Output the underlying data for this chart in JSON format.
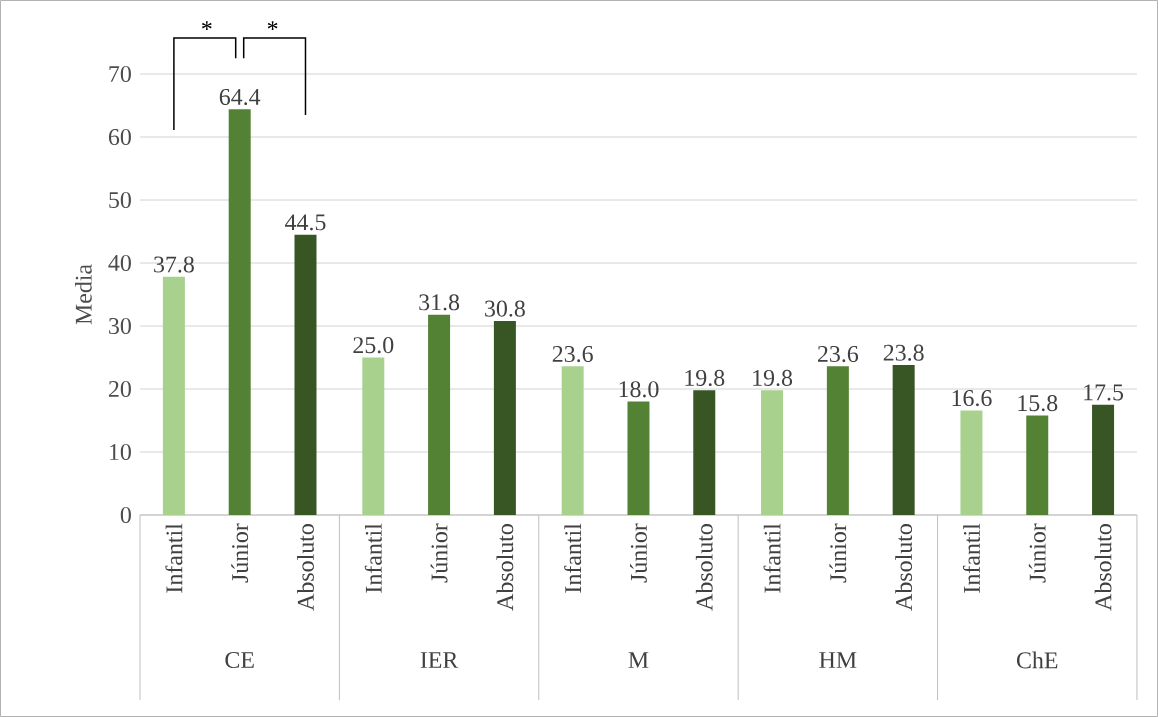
{
  "chart_data": {
    "type": "bar",
    "ylabel": "Media",
    "categories": [
      "CE",
      "IER",
      "M",
      "HM",
      "ChE"
    ],
    "series": [
      {
        "name": "Infantil",
        "color": "#a9d18e",
        "values": [
          37.8,
          25.0,
          23.6,
          19.8,
          16.6
        ],
        "value_labels": [
          "37.8",
          "25.0",
          "23.6",
          "19.8",
          "16.6"
        ]
      },
      {
        "name": "Júnior",
        "color": "#548235",
        "values": [
          64.4,
          31.8,
          18.0,
          23.6,
          15.8
        ],
        "value_labels": [
          "64.4",
          "31.8",
          "18.0",
          "23.6",
          "15.8"
        ]
      },
      {
        "name": "Absoluto",
        "color": "#375623",
        "values": [
          44.5,
          30.8,
          19.8,
          23.8,
          17.5
        ],
        "value_labels": [
          "44.5",
          "30.8",
          "19.8",
          "23.8",
          "17.5"
        ]
      }
    ],
    "ylim": [
      0,
      70
    ],
    "yticks": [
      0,
      10,
      20,
      30,
      40,
      50,
      60,
      70
    ],
    "grid": "y",
    "annotations": [
      "*",
      "*"
    ]
  }
}
